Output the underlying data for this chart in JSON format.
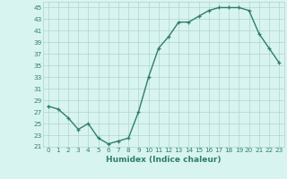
{
  "x": [
    0,
    1,
    2,
    3,
    4,
    5,
    6,
    7,
    8,
    9,
    10,
    11,
    12,
    13,
    14,
    15,
    16,
    17,
    18,
    19,
    20,
    21,
    22,
    23
  ],
  "y": [
    28,
    27.5,
    26,
    24,
    25,
    22.5,
    21.5,
    22,
    22.5,
    27,
    33,
    38,
    40,
    42.5,
    42.5,
    43.5,
    44.5,
    45,
    45,
    45,
    44.5,
    40.5,
    38,
    35.5
  ],
  "xlabel": "Humidex (Indice chaleur)",
  "xlim": [
    -0.5,
    23.5
  ],
  "ylim": [
    21,
    46
  ],
  "yticks": [
    21,
    23,
    25,
    27,
    29,
    31,
    33,
    35,
    37,
    39,
    41,
    43,
    45
  ],
  "xticks": [
    0,
    1,
    2,
    3,
    4,
    5,
    6,
    7,
    8,
    9,
    10,
    11,
    12,
    13,
    14,
    15,
    16,
    17,
    18,
    19,
    20,
    21,
    22,
    23
  ],
  "line_color": "#2e7d6e",
  "marker": "+",
  "bg_color": "#d8f4f0",
  "grid_color": "#b0d4ce",
  "tick_fontsize": 5.2,
  "xlabel_fontsize": 6.5,
  "linewidth": 1.0,
  "markersize": 3.5,
  "markeredgewidth": 0.9
}
